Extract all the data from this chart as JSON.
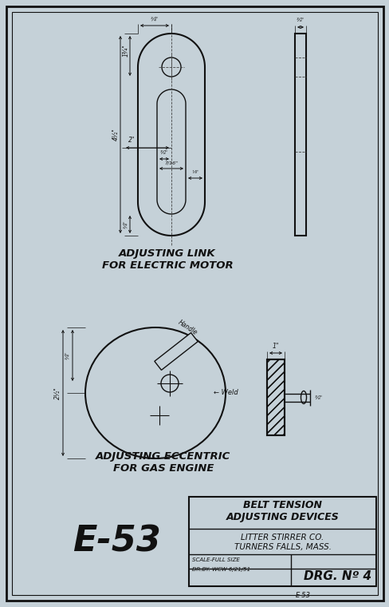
{
  "bg_color": "#c5d1d8",
  "line_color": "#111111",
  "title1": "ADJUSTING LINK",
  "title2": "FOR ELECTRIC MOTOR",
  "title3": "ADJUSTING ECCENTRIC",
  "title4": "FOR GAS ENGINE",
  "tb_title1": "BELT TENSION",
  "tb_title2": "ADJUSTING DEVICES",
  "tb_company": "LITTER STIRRER CO.",
  "tb_location": "TURNERS FALLS, MASS.",
  "tb_scale": "SCALE-FULL SIZE",
  "tb_drby": "DR.BY. WCW 6/21/51",
  "tb_drg": "DRG. Nº 4",
  "tb_code": "E-53",
  "code_large": "E-53",
  "outer_border": [
    8,
    8,
    473,
    744
  ],
  "inner_border": [
    15,
    15,
    459,
    730
  ]
}
